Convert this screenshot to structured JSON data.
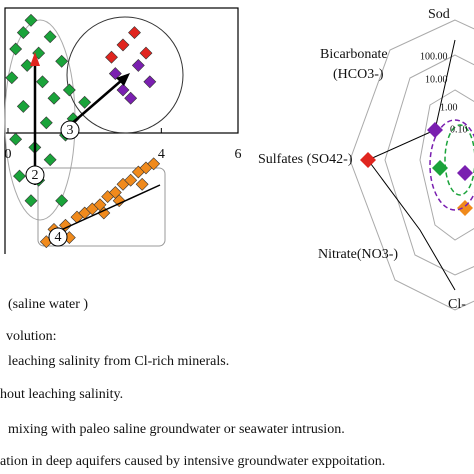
{
  "chart_data": [
    {
      "type": "scatter",
      "xlim": [
        0,
        6
      ],
      "xticks": [
        0,
        4,
        6
      ],
      "ylim": [
        -3,
        3
      ],
      "series": [
        {
          "color": "#1aa33a",
          "x": [
            0.2,
            0.4,
            0.6,
            0.1,
            0.8,
            1.1,
            1.4,
            0.4,
            1.0,
            1.2,
            1.6,
            0.7,
            0.3,
            0.6,
            1.1,
            1.5,
            1.7,
            2.0,
            0.2,
            0.8,
            1.4,
            0.5,
            0.9
          ],
          "values": [
            2.0,
            2.4,
            2.7,
            1.3,
            1.9,
            2.3,
            1.7,
            0.6,
            0.2,
            0.8,
            1.0,
            -0.4,
            -1.1,
            -1.7,
            -0.7,
            -0.1,
            0.3,
            0.7,
            -0.2,
            -1.2,
            -1.7,
            1.6,
            1.2
          ]
        },
        {
          "color": "#7a1fb0",
          "x": [
            2.8,
            3.0,
            3.4,
            3.2,
            3.7
          ],
          "values": [
            1.4,
            1.0,
            1.6,
            0.8,
            1.2
          ]
        },
        {
          "color": "#e0251f",
          "x": [
            3.0,
            3.3,
            3.6,
            2.7
          ],
          "values": [
            2.1,
            2.4,
            1.9,
            1.8
          ]
        },
        {
          "color": "#f08a1c",
          "x": [
            1.2,
            1.5,
            1.8,
            2.0,
            2.2,
            2.4,
            2.6,
            2.8,
            3.0,
            3.2,
            3.4,
            3.6,
            3.8,
            1.0,
            2.5,
            2.9,
            3.5,
            1.6
          ],
          "values": [
            -2.4,
            -2.3,
            -2.1,
            -2.0,
            -1.9,
            -1.8,
            -1.6,
            -1.5,
            -1.3,
            -1.2,
            -1.0,
            -0.9,
            -0.8,
            -2.7,
            -2.0,
            -1.7,
            -1.3,
            -2.6
          ]
        }
      ],
      "annotations": [
        "2",
        "3",
        "4"
      ],
      "xlabel": "(saline water )"
    },
    {
      "type": "radar",
      "labels": [
        "Sod",
        "Bicarbonate",
        "(HCO3-)",
        "Sulfates (SO42-)",
        "Nitrate(NO3-)",
        "Cl-"
      ],
      "rticks": [
        "100.00",
        "10.00",
        "1.00",
        "0.10"
      ]
    }
  ],
  "caption": [
    "volution:",
    "leaching salinity from Cl-rich minerals.",
    "hout leaching salinity.",
    "mixing with paleo saline groundwater or seawater intrusion.",
    "ation in deep aquifers caused by intensive groundwater exppoitation."
  ]
}
